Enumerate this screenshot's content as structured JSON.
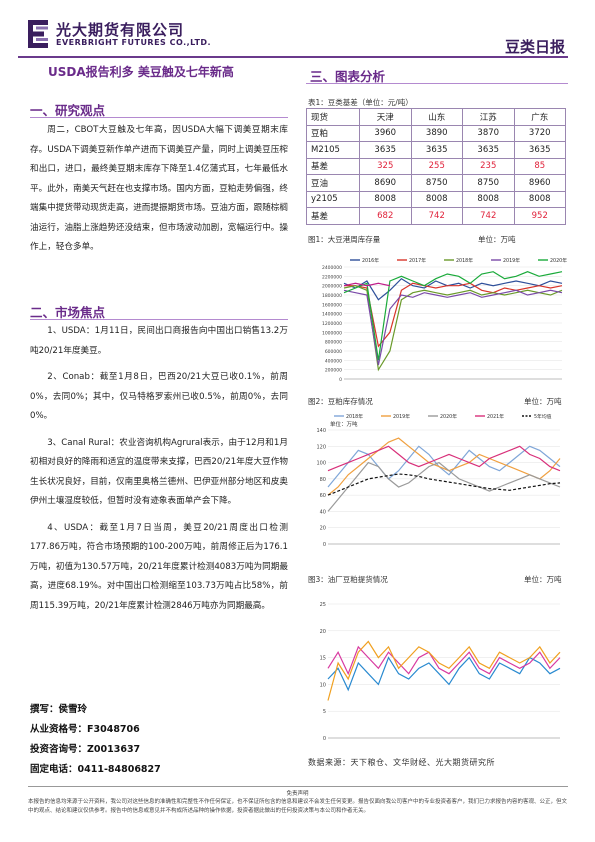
{
  "header": {
    "company_cn": "光大期货有限公司",
    "company_en": "EVERBRIGHT FUTURES CO.,LTD.",
    "report_title": "豆类日报"
  },
  "headline": "USDA报告利多   美豆触及七年新高",
  "sections": {
    "research_title": "一、研究观点",
    "research_text": "周二，CBOT大豆触及七年高，因USDA大幅下调美豆期末库存。USDA下调美豆新作单产进而下调美豆产量，同时上调美豆压榨和出口，进口，最终美豆期末库存下降至1.4亿蒲式耳，七年最低水平。此外，南美天气赶在也支撑市场。国内方面，豆粕走势偏强，终端集中提货带动现货走高，进而提振期货市场。豆油方面，跟随棕榈油运行，油脂上涨趋势还没结束，但市场波动加剧，宽幅运行中。操作上，轻仓多单。",
    "market_title": "二、市场焦点",
    "market_items": [
      "1、USDA：1月11日，民间出口商报告向中国出口销售13.2万吨20/21年度美豆。",
      "2、Conab：截至1月8日，巴西20/21大豆已收0.1%，前周0%，去同0%；其中，仅马特格罗索州已收0.5%，前周0%，去同0%。",
      "3、Canal Rural：农业咨询机构Agrural表示，由于12月和1月初相对良好的降雨和适宜的温度带来支撑，巴西20/21年度大豆作物生长状况良好，目前，仅南里奥格兰德州、巴伊亚州部分地区和皮奥伊州土壤湿度较低，但暂时没有迹象表面单产会下降。",
      "4、USDA：截至1月7日当周，美豆20/21周度出口检测177.86万吨，符合市场预期的100-200万吨，前周修正后为176.1万吨，初值为130.57万吨，20/21年度累计检测4083万吨为同期最高，进度68.19%。对中国出口检测缩至103.73万吨占比58%，前周115.39万吨，20/21年度累计检测2846万吨亦为同期最高。"
    ],
    "analysis_title": "三、图表分析"
  },
  "contact": {
    "author": "撰写：侯雪玲",
    "license": "从业资格号：F3048706",
    "consult": "投资咨询号：Z0013637",
    "phone": "固定电话：0411-84806827"
  },
  "table": {
    "caption": "表1：豆类基差（单位：元/吨）",
    "header": [
      "现货",
      "天津",
      "山东",
      "江苏",
      "广东"
    ],
    "rows": [
      {
        "label": "豆粕",
        "values": [
          "3960",
          "3890",
          "3870",
          "3720"
        ],
        "basis": false
      },
      {
        "label": "M2105",
        "values": [
          "3635",
          "3635",
          "3635",
          "3635"
        ],
        "basis": false
      },
      {
        "label": "基差",
        "values": [
          "325",
          "255",
          "235",
          "85"
        ],
        "basis": true
      },
      {
        "label": "豆油",
        "values": [
          "8690",
          "8750",
          "8750",
          "8960"
        ],
        "basis": false
      },
      {
        "label": "y2105",
        "values": [
          "8008",
          "8008",
          "8008",
          "8008"
        ],
        "basis": false
      },
      {
        "label": "基差",
        "values": [
          "682",
          "742",
          "742",
          "952"
        ],
        "basis": true
      }
    ]
  },
  "figures": {
    "fig1": {
      "caption": "图1：大豆港周库存量",
      "unit": "单位：万吨"
    },
    "fig2": {
      "caption": "图2：豆粕库存情况",
      "unit": "单位：万吨"
    },
    "fig3": {
      "caption": "图3：油厂豆粕提货情况",
      "unit": "单位：万吨"
    }
  },
  "chart_data": [
    {
      "type": "line",
      "title": "",
      "series": [
        {
          "name": "2016年",
          "color": "#2e4f9a",
          "values": [
            2050000,
            1950000,
            2100000,
            1700000,
            1900000,
            2150000,
            2000000,
            1950000,
            2100000,
            2000000,
            2050000,
            1950000,
            2050000,
            2000000,
            2050000,
            2100000,
            2050000,
            2000000,
            2100000,
            2050000
          ]
        },
        {
          "name": "2017年",
          "color": "#d8352a",
          "values": [
            2000000,
            2000000,
            1950000,
            700000,
            1000000,
            1900000,
            2050000,
            2000000,
            1950000,
            2000000,
            2000000,
            2050000,
            1900000,
            1850000,
            1950000,
            1900000,
            1950000,
            2000000,
            1950000,
            2000000
          ]
        },
        {
          "name": "2018年",
          "color": "#6a9a2a",
          "values": [
            1950000,
            2000000,
            1900000,
            200000,
            600000,
            1700000,
            1850000,
            1900000,
            1850000,
            1800000,
            1850000,
            1900000,
            1800000,
            1850000,
            1800000,
            1850000,
            1900000,
            1850000,
            1800000,
            1900000
          ]
        },
        {
          "name": "2019年",
          "color": "#7a4aa8",
          "values": [
            1900000,
            1850000,
            1800000,
            300000,
            1500000,
            1800000,
            1750000,
            1850000,
            1800000,
            1750000,
            1800000,
            1850000,
            1750000,
            1800000,
            1850000,
            1900000,
            1800000,
            1850000,
            1900000,
            1850000
          ]
        },
        {
          "name": "2020年",
          "color": "#1aaa3a",
          "values": [
            1850000,
            1950000,
            2050000,
            400000,
            2100000,
            2200000,
            2100000,
            2000000,
            2150000,
            2250000,
            2200000,
            2050000,
            2250000,
            2300000,
            2150000,
            2200000,
            2300000,
            2200000,
            2250000,
            2300000
          ]
        },
        {
          "name": "2021年",
          "color": "#c01e8a",
          "values": [
            2000000,
            2050000,
            2000000,
            2050000,
            2000000,
            null,
            null,
            null,
            null,
            null,
            null,
            null,
            null,
            null,
            null,
            null,
            null,
            null,
            null,
            null
          ]
        }
      ],
      "legend_extra": "5年均值",
      "y_ticks": [
        "2400000",
        "2200000",
        "2000000",
        "1800000",
        "1600000",
        "1400000",
        "1200000",
        "1000000",
        "800000",
        "600000",
        "400000",
        "200000",
        "0"
      ],
      "ylim": [
        0,
        2400000
      ]
    },
    {
      "type": "line",
      "title": "",
      "y_label": "单位：万吨",
      "series": [
        {
          "name": "2018年",
          "color": "#7fa6d8",
          "values": [
            70,
            85,
            100,
            115,
            110,
            95,
            80,
            90,
            105,
            120,
            110,
            95,
            85,
            100,
            115,
            105,
            95,
            90,
            100,
            110,
            120,
            115,
            105,
            95
          ]
        },
        {
          "name": "2019年",
          "color": "#f0a040",
          "values": [
            60,
            70,
            85,
            95,
            105,
            115,
            125,
            130,
            120,
            110,
            100,
            95,
            90,
            95,
            100,
            110,
            105,
            100,
            95,
            90,
            85,
            80,
            90,
            105
          ]
        },
        {
          "name": "2020年",
          "color": "#9a9a9a",
          "values": [
            40,
            55,
            70,
            85,
            100,
            95,
            80,
            70,
            75,
            85,
            95,
            100,
            90,
            80,
            75,
            70,
            65,
            70,
            75,
            80,
            85,
            80,
            75,
            70
          ]
        },
        {
          "name": "2021年",
          "color": "#d8307a",
          "values": [
            90,
            95,
            100,
            105,
            110,
            115,
            120,
            110,
            100,
            95,
            100,
            105,
            110,
            105,
            100,
            95,
            105,
            110,
            115,
            120,
            110,
            105,
            95,
            90
          ]
        },
        {
          "name": "5年均值",
          "color": "#111111",
          "values": [
            60,
            65,
            70,
            75,
            80,
            82,
            84,
            86,
            85,
            83,
            80,
            78,
            76,
            74,
            72,
            70,
            68,
            67,
            66,
            68,
            70,
            72,
            74,
            75
          ]
        }
      ],
      "y_ticks": [
        "140",
        "120",
        "100",
        "80",
        "60",
        "40",
        "20",
        "0"
      ],
      "ylim": [
        0,
        140
      ]
    },
    {
      "type": "line",
      "title": "",
      "series": [
        {
          "name": "2018年",
          "color": "#2a8ad0",
          "values": [
            11,
            13,
            9,
            14,
            12,
            10,
            15,
            12,
            11,
            13,
            14,
            12,
            10,
            13,
            15,
            12,
            11,
            14,
            13,
            12,
            15,
            14,
            12,
            13
          ]
        },
        {
          "name": "2019年",
          "color": "#d83aa0",
          "values": [
            13,
            16,
            12,
            17,
            15,
            13,
            16,
            14,
            12,
            15,
            16,
            13,
            12,
            14,
            16,
            13,
            12,
            15,
            14,
            13,
            14,
            16,
            13,
            15
          ]
        },
        {
          "name": "2020年",
          "color": "#f0a020",
          "values": [
            7,
            14,
            11,
            16,
            18,
            15,
            17,
            13,
            15,
            17,
            16,
            14,
            13,
            15,
            17,
            14,
            13,
            16,
            15,
            14,
            15,
            17,
            14,
            16
          ]
        }
      ],
      "y_ticks": [
        "25",
        "20",
        "15",
        "10",
        "5",
        "0"
      ],
      "ylim": [
        0,
        25
      ]
    }
  ],
  "source": "数据来源：天下粮仓、文华财经、光大期货研究所",
  "disclaimer": {
    "title": "免责声明",
    "text": "本报告的信息均来源于公开资料，我公司对这些信息的准确性和完整性不作任何保证，也不保证所包含的信息和建议不会发生任何变更。报告仅面向我公司客户中的专业投资者客户，我们已力求报告内容的客观、公正，但文中的观点、结论和建议仅供参考。报告中的信息或意见并不构成所述品种的操作依据，投资者据此做出的任何投资决策与本公司和作者无关。"
  }
}
